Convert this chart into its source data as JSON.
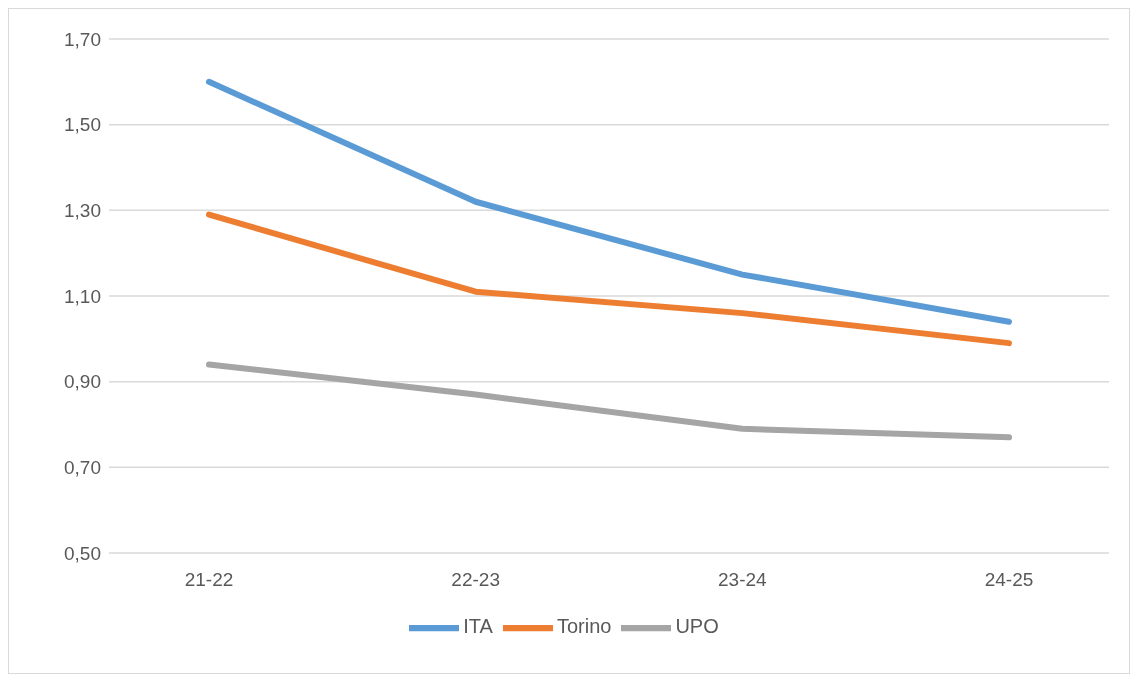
{
  "chart_data": {
    "type": "line",
    "categories": [
      "21-22",
      "22-23",
      "23-24",
      "24-25"
    ],
    "series": [
      {
        "name": "ITA",
        "color": "#5b9bd5",
        "values": [
          1.6,
          1.32,
          1.15,
          1.04
        ]
      },
      {
        "name": "Torino",
        "color": "#ed7d31",
        "values": [
          1.29,
          1.11,
          1.06,
          0.99
        ]
      },
      {
        "name": "UPO",
        "color": "#a5a5a5",
        "values": [
          0.94,
          0.87,
          0.79,
          0.77
        ]
      }
    ],
    "ylim": [
      0.5,
      1.7
    ],
    "yticks": [
      {
        "value": 0.5,
        "label": "0,50"
      },
      {
        "value": 0.7,
        "label": "0,70"
      },
      {
        "value": 0.9,
        "label": "0,90"
      },
      {
        "value": 1.1,
        "label": "1,10"
      },
      {
        "value": 1.3,
        "label": "1,30"
      },
      {
        "value": 1.5,
        "label": "1,50"
      },
      {
        "value": 1.7,
        "label": "1,70"
      }
    ],
    "grid": "y",
    "legend": "bottom",
    "marker": "none",
    "line_style": "solid"
  }
}
